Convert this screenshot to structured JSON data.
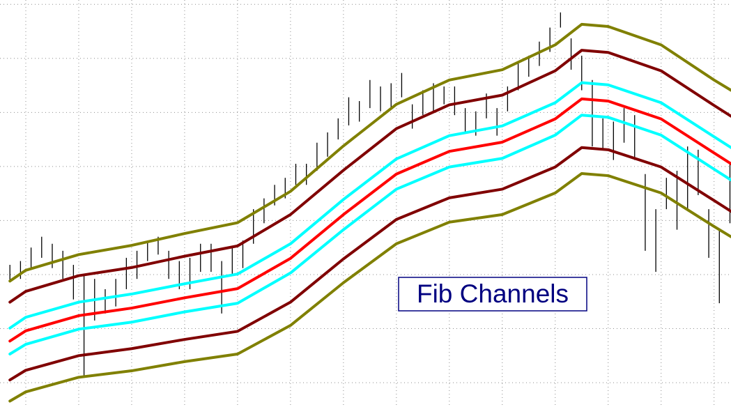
{
  "chart_data": {
    "type": "line",
    "annotation": "Fib Channels",
    "xlim": [
      -4.87,
      133.2
    ],
    "ylim": [
      -4.5,
      70.8
    ],
    "xticks": [
      0,
      10,
      20,
      30,
      40,
      50,
      60,
      70,
      80,
      90,
      100,
      110,
      120,
      130
    ],
    "yticks": [
      0,
      10,
      20,
      30,
      40,
      50,
      60,
      70
    ],
    "grid": true,
    "x": [
      -3,
      0,
      10,
      20,
      30,
      40,
      50,
      60,
      70,
      80,
      90,
      100,
      105,
      110,
      120,
      130,
      133.2
    ],
    "series": [
      {
        "color": "#808000",
        "values": [
          18.8,
          20.8,
          23.7,
          25.4,
          27.6,
          29.6,
          35.4,
          43.8,
          51.5,
          56.0,
          57.9,
          62.5,
          66.3,
          65.9,
          62.5,
          56.0,
          54.1
        ]
      },
      {
        "color": "#800000",
        "values": [
          14.9,
          16.9,
          19.8,
          21.3,
          23.4,
          25.3,
          31.1,
          39.3,
          47.0,
          51.4,
          53.2,
          57.7,
          61.5,
          61.1,
          57.7,
          51.3,
          49.3
        ]
      },
      {
        "color": "#00ffff",
        "values": [
          10.1,
          12.1,
          14.9,
          16.4,
          18.3,
          20.1,
          25.7,
          33.9,
          41.4,
          45.7,
          47.5,
          51.8,
          55.5,
          55.1,
          51.8,
          45.5,
          43.5
        ]
      },
      {
        "color": "#ff0000",
        "values": [
          7.7,
          9.6,
          12.4,
          13.8,
          15.7,
          17.4,
          23.0,
          31.1,
          38.6,
          42.8,
          44.5,
          48.8,
          52.5,
          52.1,
          48.8,
          42.5,
          40.5
        ]
      },
      {
        "color": "#00ffff",
        "values": [
          5.3,
          7.1,
          9.9,
          11.2,
          13.1,
          14.7,
          20.3,
          28.3,
          35.8,
          39.9,
          41.5,
          45.8,
          49.5,
          49.1,
          45.8,
          39.5,
          37.5
        ]
      },
      {
        "color": "#800000",
        "values": [
          0.5,
          2.3,
          5.0,
          6.3,
          8.0,
          9.5,
          14.9,
          22.9,
          30.2,
          34.2,
          35.8,
          39.9,
          43.5,
          43.1,
          39.9,
          33.7,
          31.7
        ]
      },
      {
        "color": "#808000",
        "values": [
          -3.4,
          -1.7,
          1.0,
          2.2,
          3.9,
          5.3,
          10.6,
          18.5,
          25.7,
          29.7,
          31.1,
          35.1,
          38.7,
          38.3,
          35.1,
          28.9,
          27.0
        ]
      }
    ],
    "bars": {
      "color": "#000000",
      "x": [
        -3,
        -1,
        1,
        3,
        5,
        7,
        9,
        11,
        13,
        15,
        17,
        19,
        21,
        23,
        25,
        27,
        29,
        31,
        33,
        35,
        37,
        39,
        41,
        43,
        45,
        47,
        49,
        51,
        53,
        55,
        57,
        59,
        61,
        63,
        65,
        67,
        69,
        71,
        73,
        75,
        77,
        79,
        81,
        83,
        85,
        87,
        89,
        91,
        93,
        95,
        97,
        99,
        101,
        103,
        105,
        107,
        109,
        111,
        113,
        115,
        117,
        119,
        121,
        123,
        125,
        127,
        129,
        131,
        133
      ],
      "high": [
        21.8,
        22.5,
        25.0,
        27.0,
        25.7,
        24.4,
        21.8,
        19.9,
        19.2,
        17.3,
        19.2,
        23.1,
        24.4,
        26.3,
        27.0,
        24.4,
        22.5,
        23.1,
        25.7,
        25.7,
        22.5,
        25.0,
        26.3,
        32.1,
        34.1,
        36.6,
        37.9,
        40.5,
        40.5,
        44.4,
        46.3,
        48.9,
        52.8,
        52.1,
        56.0,
        54.8,
        55.4,
        57.3,
        51.5,
        54.1,
        55.4,
        54.8,
        54.8,
        50.8,
        50.2,
        53.5,
        50.8,
        54.8,
        59.2,
        60.5,
        63.1,
        65.7,
        68.5,
        63.7,
        60.5,
        56.0,
        48.9,
        48.3,
        50.8,
        49.5,
        38.6,
        32.1,
        37.9,
        39.2,
        43.7,
        43.1,
        32.1,
        28.3,
        40.5
      ],
      "low": [
        18.6,
        19.2,
        21.2,
        23.1,
        21.2,
        19.2,
        15.4,
        1.2,
        11.5,
        12.8,
        14.1,
        17.3,
        19.2,
        22.5,
        23.7,
        19.2,
        17.3,
        17.3,
        20.5,
        20.5,
        12.8,
        19.9,
        21.2,
        25.7,
        29.5,
        32.8,
        34.1,
        36.6,
        36.6,
        39.2,
        41.8,
        45.0,
        47.6,
        48.3,
        50.8,
        50.2,
        50.8,
        52.8,
        47.0,
        49.5,
        50.2,
        51.5,
        49.5,
        46.3,
        45.7,
        48.9,
        45.7,
        50.2,
        54.1,
        56.6,
        58.6,
        61.2,
        65.7,
        57.9,
        54.1,
        43.7,
        43.1,
        41.2,
        44.4,
        41.2,
        24.4,
        20.5,
        32.1,
        28.3,
        32.1,
        34.7,
        23.1,
        14.7,
        29.5
      ]
    }
  }
}
